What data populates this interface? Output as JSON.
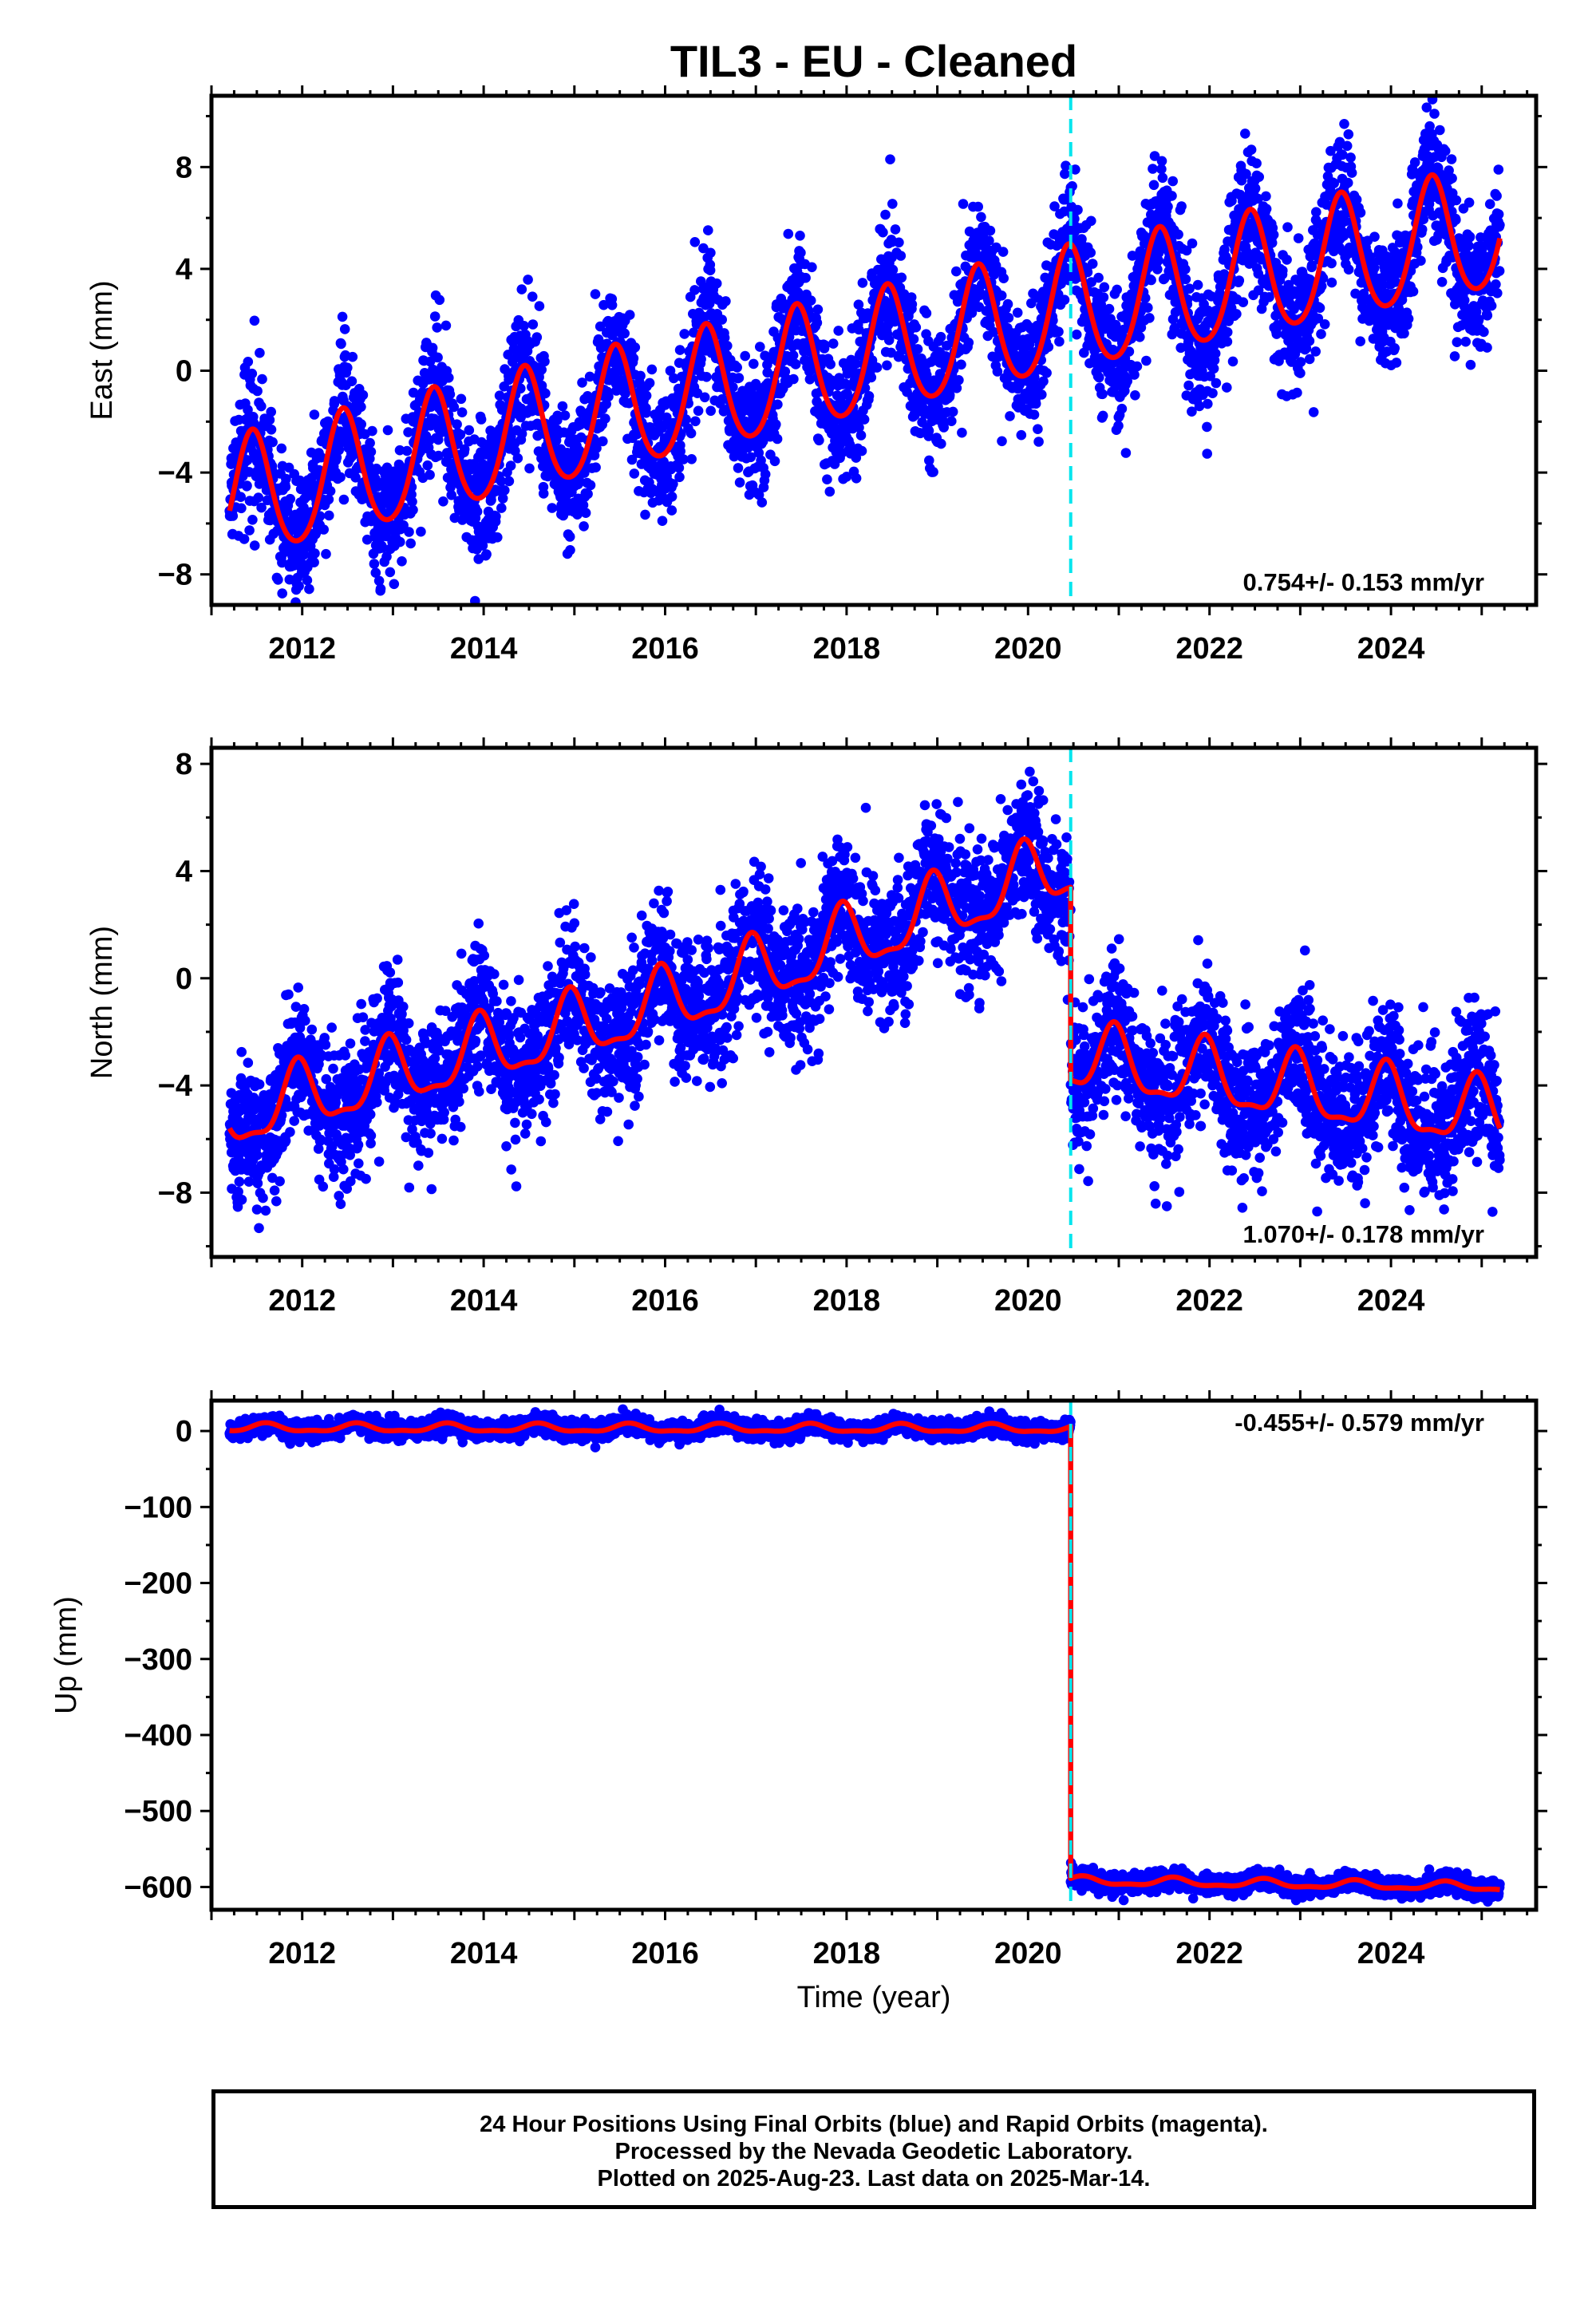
{
  "title": "TIL3  - EU - Cleaned",
  "xlabel": "Time (year)",
  "footer": {
    "line1": "24 Hour Positions Using Final Orbits (blue) and Rapid Orbits (magenta).",
    "line2": "Processed by the Nevada Geodetic Laboratory.",
    "line3": "Plotted on 2025-Aug-23. Last data on 2025-Mar-14."
  },
  "colors": {
    "points": "#0000ff",
    "model": "#ff0000",
    "offset_line": "#00e5ee",
    "axes": "#000000"
  },
  "chart_data": [
    {
      "type": "scatter",
      "name": "east",
      "ylabel": "East (mm)",
      "rate": "0.754+/- 0.153 mm/yr",
      "rate_position": "bottom-right",
      "xlim": [
        2011.0,
        2025.6
      ],
      "ylim": [
        -9.2,
        10.8
      ],
      "xticks": [
        2012,
        2014,
        2016,
        2018,
        2020,
        2022,
        2024
      ],
      "yticks": [
        -8,
        -4,
        0,
        4,
        8
      ],
      "yticklabels": [
        "−8",
        "−4",
        "0",
        "4",
        "8"
      ],
      "offset_year": 2020.47,
      "step": 0,
      "model": {
        "anchors": [
          [
            2011.2,
            -5.2
          ],
          [
            2016.0,
            -1.2
          ],
          [
            2020.47,
            2.3
          ],
          [
            2025.2,
            5.5
          ]
        ],
        "annual_amp": 2.4,
        "annual_peak": 0.45,
        "semi_amp": 0.3,
        "noise": 1.3
      },
      "data_range": [
        2011.2,
        2025.2
      ],
      "grid": false
    },
    {
      "type": "scatter",
      "name": "north",
      "ylabel": "North (mm)",
      "rate": "1.070+/- 0.178 mm/yr",
      "rate_position": "bottom-right",
      "xlim": [
        2011.0,
        2025.6
      ],
      "ylim": [
        -10.4,
        8.6
      ],
      "xticks": [
        2012,
        2014,
        2016,
        2018,
        2020,
        2022,
        2024
      ],
      "yticks": [
        -8,
        -4,
        0,
        4,
        8
      ],
      "yticklabels": [
        "−8",
        "−4",
        "0",
        "4",
        "8"
      ],
      "offset_year": 2020.47,
      "step": -7.2,
      "model": {
        "anchors": [
          [
            2011.2,
            -5.2
          ],
          [
            2016.0,
            -1.0
          ],
          [
            2020.47,
            4.2
          ],
          [
            2025.2,
            2.0
          ]
        ],
        "annual_amp": 1.2,
        "annual_peak": 0.95,
        "semi_amp": 0.4,
        "noise": 1.3
      },
      "data_range": [
        2011.2,
        2025.2
      ],
      "grid": false
    },
    {
      "type": "scatter",
      "name": "up",
      "ylabel": "Up (mm)",
      "rate": "-0.455+/- 0.579 mm/yr",
      "rate_position": "top-right",
      "xlim": [
        2011.0,
        2025.6
      ],
      "ylim": [
        -630,
        40
      ],
      "xticks": [
        2012,
        2014,
        2016,
        2018,
        2020,
        2022,
        2024
      ],
      "yticks": [
        -600,
        -500,
        -400,
        -300,
        -200,
        -100,
        0
      ],
      "yticklabels": [
        "−600",
        "−500",
        "−400",
        "−300",
        "−200",
        "−100",
        "0"
      ],
      "offset_year": 2020.47,
      "step": -595,
      "model": {
        "anchors": [
          [
            2011.2,
            4
          ],
          [
            2020.47,
            3
          ],
          [
            2025.2,
            -5
          ]
        ],
        "annual_amp": 5,
        "annual_peak": 0.6,
        "semi_amp": 2,
        "noise": 6
      },
      "data_range": [
        2011.2,
        2025.2
      ],
      "grid": false
    }
  ]
}
